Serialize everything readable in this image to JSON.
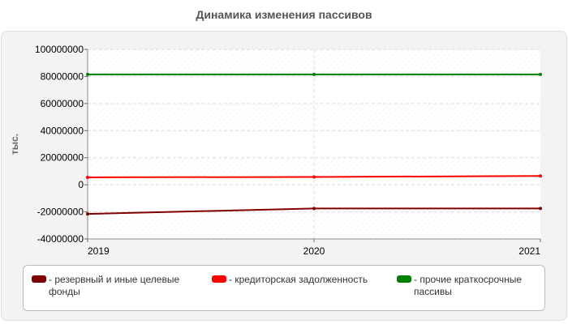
{
  "chart_data": {
    "type": "line",
    "title": "Динамика изменения пассивов",
    "ylabel": "тыс.",
    "xlabel": "",
    "x": [
      "2019",
      "2020",
      "2021"
    ],
    "ylim": [
      -40000000,
      100000000
    ],
    "yticks": [
      "100000000",
      "80000000",
      "60000000",
      "40000000",
      "20000000",
      "0",
      "-20000000",
      "-40000000"
    ],
    "grid": true,
    "legend_position": "bottom",
    "series": [
      {
        "name": "- резервный и иные целевые фонды",
        "color": "#800000",
        "values": [
          -21500000,
          -17500000,
          -17500000
        ]
      },
      {
        "name": "- кредиторская задолженность",
        "color": "#ff0000",
        "values": [
          5500000,
          5800000,
          6500000
        ]
      },
      {
        "name": "- прочие краткосрочные пассивы",
        "color": "#008000",
        "values": [
          81500000,
          81500000,
          81500000
        ]
      }
    ]
  }
}
